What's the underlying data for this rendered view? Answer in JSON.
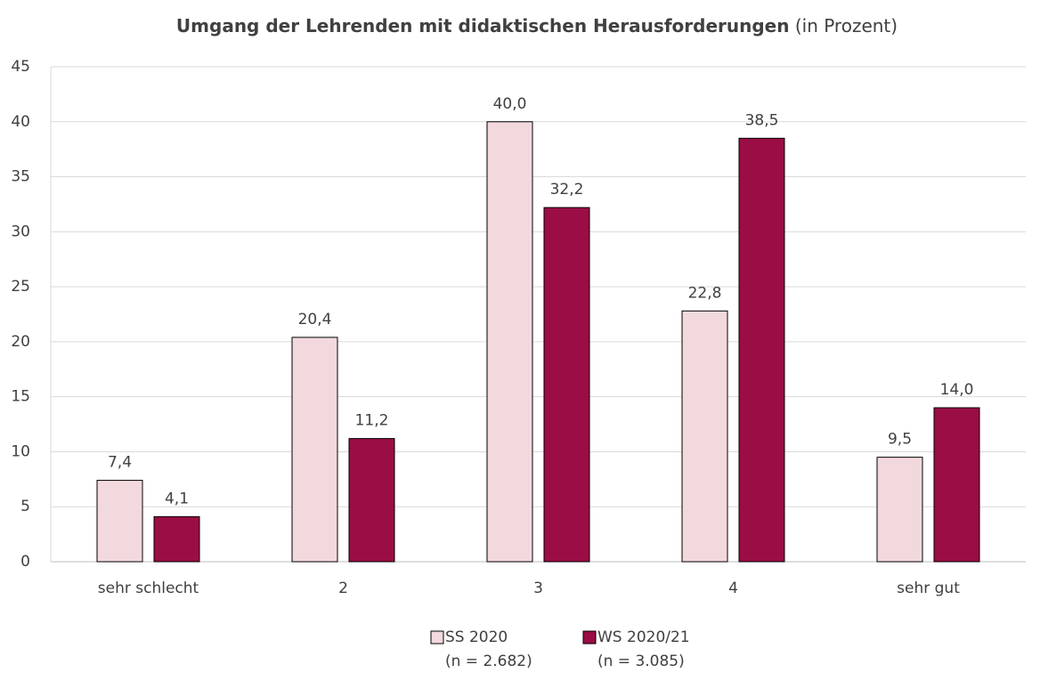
{
  "chart_data": {
    "type": "bar",
    "title": "Umgang der Lehrenden mit didaktischen Herausforderungen",
    "title_suffix": "(in Prozent)",
    "categories": [
      "sehr schlecht",
      "2",
      "3",
      "4",
      "sehr gut"
    ],
    "series": [
      {
        "name": "SS 2020",
        "n_label": "(n = 2.682)",
        "color": "#f2d9dd",
        "values": [
          7.4,
          20.4,
          40.0,
          22.8,
          9.5
        ],
        "value_labels": [
          "7,4",
          "20,4",
          "40,0",
          "22,8",
          "9,5"
        ]
      },
      {
        "name": "WS 2020/21",
        "n_label": "(n = 3.085)",
        "color": "#9b0d45",
        "values": [
          4.1,
          11.2,
          32.2,
          38.5,
          14.0
        ],
        "value_labels": [
          "4,1",
          "11,2",
          "32,2",
          "38,5",
          "14,0"
        ]
      }
    ],
    "ylim": [
      0,
      45
    ],
    "yticks": [
      0,
      5,
      10,
      15,
      20,
      25,
      30,
      35,
      40,
      45
    ],
    "grid": true,
    "legend": "bottom"
  }
}
